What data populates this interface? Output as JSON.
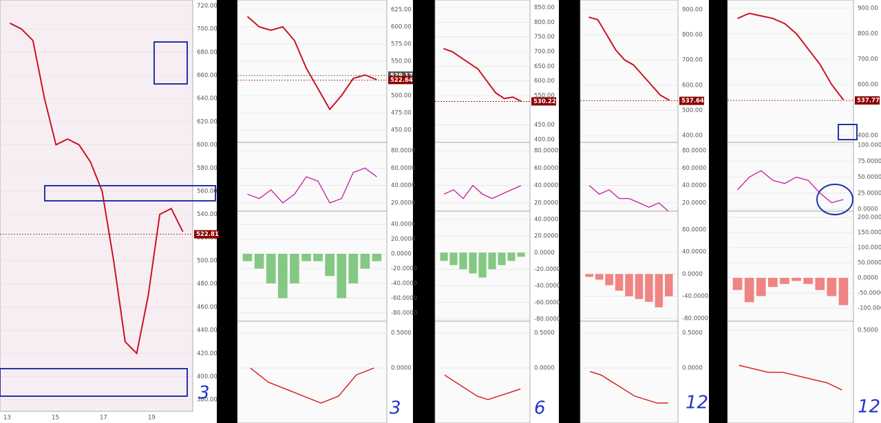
{
  "columns": [
    {
      "annotation": "3",
      "x_labels": [
        "13",
        "15",
        "17",
        "19"
      ],
      "price_tags": [
        {
          "value": 522.81,
          "color": "#8b0000"
        }
      ],
      "panels": [
        {
          "type": "price",
          "ylim": [
            370,
            725
          ],
          "color": "#cc1122",
          "yticks": [
            {
              "value": 720,
              "label": "720.00"
            },
            {
              "value": 700,
              "label": "700.00"
            },
            {
              "value": 680,
              "label": "680.00"
            },
            {
              "value": 660,
              "label": "660.00"
            },
            {
              "value": 640,
              "label": "640.00"
            },
            {
              "value": 620,
              "label": "620.00"
            },
            {
              "value": 600,
              "label": "600.00"
            },
            {
              "value": 580,
              "label": "580.00"
            },
            {
              "value": 560,
              "label": "560.00"
            },
            {
              "value": 540,
              "label": "540.00"
            },
            {
              "value": 520,
              "label": "520.00"
            },
            {
              "value": 500,
              "label": "500.00"
            },
            {
              "value": 480,
              "label": "480.00"
            },
            {
              "value": 460,
              "label": "460.00"
            },
            {
              "value": 440,
              "label": "440.00"
            },
            {
              "value": 420,
              "label": "420.00"
            },
            {
              "value": 400,
              "label": "400.00"
            },
            {
              "value": 380,
              "label": "380.00"
            }
          ],
          "values": [
            705,
            700,
            690,
            640,
            600,
            605,
            600,
            585,
            560,
            500,
            430,
            420,
            470,
            540,
            545,
            525
          ]
        }
      ]
    },
    {
      "annotation": "3",
      "price_tags": [
        {
          "value": 529.17,
          "color": "#555555"
        },
        {
          "value": 522.64,
          "color": "#8b0000"
        }
      ],
      "panels": [
        {
          "type": "price",
          "ylim": [
            432,
            639
          ],
          "color": "#cc1122",
          "yticks": [
            {
              "value": 625,
              "label": "625.00"
            },
            {
              "value": 600,
              "label": "600.00"
            },
            {
              "value": 575,
              "label": "575.00"
            },
            {
              "value": 550,
              "label": "550.00"
            },
            {
              "value": 500,
              "label": "500.00"
            },
            {
              "value": 475,
              "label": "475.00"
            },
            {
              "value": 450,
              "label": "450.00"
            }
          ],
          "values": [
            615,
            600,
            595,
            600,
            580,
            540,
            510,
            480,
            500,
            525,
            530,
            523
          ]
        },
        {
          "type": "line",
          "ylim": [
            10.5,
            89.5
          ],
          "color": "#cc33aa",
          "yticks": [
            {
              "value": 80,
              "label": "80.0000"
            },
            {
              "value": 60,
              "label": "60.0000"
            },
            {
              "value": 40,
              "label": "40.0000"
            },
            {
              "value": 20,
              "label": "20.0000"
            }
          ],
          "values": [
            30,
            25,
            35,
            20,
            30,
            50,
            45,
            20,
            25,
            55,
            60,
            50
          ]
        },
        {
          "type": "histogram",
          "ylim": [
            -91.2,
            57.7
          ],
          "color": "#66bb66",
          "yticks": [
            {
              "value": 40,
              "label": "40.0000"
            },
            {
              "value": 20,
              "label": "20.0000"
            },
            {
              "value": 0,
              "label": "0.0000"
            },
            {
              "value": -20,
              "label": "-20.0000"
            },
            {
              "value": -40,
              "label": "-40.0000"
            },
            {
              "value": -60,
              "label": "-60.0000"
            },
            {
              "value": -80,
              "label": "-80.0000"
            }
          ],
          "values": [
            -10,
            -20,
            -40,
            -60,
            -40,
            -10,
            -10,
            -30,
            -60,
            -40,
            -20,
            -10
          ]
        },
        {
          "type": "line",
          "ylim": [
            -0.784,
            0.667
          ],
          "color": "#dd2222",
          "yticks": [
            {
              "value": 0.5,
              "label": "0.5000"
            },
            {
              "value": 0,
              "label": "0.0000"
            }
          ],
          "values": [
            0,
            -0.2,
            -0.3,
            -0.4,
            -0.5,
            -0.4,
            -0.1,
            0
          ]
        }
      ]
    },
    {
      "annotation": "6",
      "price_tags": [
        {
          "value": 530.22,
          "color": "#8b0000"
        }
      ],
      "panels": [
        {
          "type": "price",
          "ylim": [
            390.6,
            875.8
          ],
          "color": "#cc1122",
          "yticks": [
            {
              "value": 850,
              "label": "850.00"
            },
            {
              "value": 800,
              "label": "800.00"
            },
            {
              "value": 750,
              "label": "750.00"
            },
            {
              "value": 700,
              "label": "700.00"
            },
            {
              "value": 650,
              "label": "650.00"
            },
            {
              "value": 600,
              "label": "600.00"
            },
            {
              "value": 550,
              "label": "550.00"
            },
            {
              "value": 450,
              "label": "450.00"
            },
            {
              "value": 400,
              "label": "400.00"
            }
          ],
          "values": [
            710,
            700,
            680,
            660,
            640,
            600,
            560,
            540,
            545,
            530
          ]
        },
        {
          "type": "line",
          "ylim": [
            10.5,
            89.5
          ],
          "color": "#cc33aa",
          "yticks": [
            {
              "value": 80,
              "label": "80.0000"
            },
            {
              "value": 60,
              "label": "60.0000"
            },
            {
              "value": 40,
              "label": "40.0000"
            },
            {
              "value": 20,
              "label": "20.0000"
            }
          ],
          "values": [
            30,
            35,
            25,
            40,
            30,
            25,
            30,
            35,
            40
          ]
        },
        {
          "type": "histogram",
          "ylim": [
            -82.5,
            49.9
          ],
          "color": "#66bb66",
          "yticks": [
            {
              "value": 40,
              "label": "40.0000"
            },
            {
              "value": 20,
              "label": "20.0000"
            },
            {
              "value": 0,
              "label": "0.0000"
            },
            {
              "value": -20,
              "label": "-20.0000"
            },
            {
              "value": -40,
              "label": "-40.0000"
            },
            {
              "value": -60,
              "label": "-60.0000"
            },
            {
              "value": -80,
              "label": "-80.0000"
            }
          ],
          "values": [
            -10,
            -15,
            -20,
            -25,
            -30,
            -20,
            -15,
            -10,
            -5
          ]
        },
        {
          "type": "line",
          "ylim": [
            -0.784,
            0.667
          ],
          "color": "#dd2222",
          "yticks": [
            {
              "value": 0.5,
              "label": "0.5000"
            },
            {
              "value": 0,
              "label": "0.0000"
            }
          ],
          "values": [
            -0.1,
            -0.2,
            -0.3,
            -0.4,
            -0.45,
            -0.4,
            -0.35,
            -0.3
          ]
        }
      ]
    },
    {
      "annotation": "12",
      "price_tags": [
        {
          "value": 537.64,
          "color": "#8b0000"
        }
      ],
      "panels": [
        {
          "type": "price",
          "ylim": [
            372.7,
            938
          ],
          "color": "#cc1122",
          "yticks": [
            {
              "value": 900,
              "label": "900.00"
            },
            {
              "value": 800,
              "label": "800.00"
            },
            {
              "value": 700,
              "label": "700.00"
            },
            {
              "value": 600,
              "label": "600.00"
            },
            {
              "value": 500,
              "label": "500.00"
            },
            {
              "value": 400,
              "label": "400.00"
            }
          ],
          "values": [
            870,
            860,
            800,
            740,
            700,
            680,
            640,
            600,
            560,
            540
          ]
        },
        {
          "type": "line",
          "ylim": [
            10.5,
            89.5
          ],
          "color": "#cc33aa",
          "yticks": [
            {
              "value": 80,
              "label": "80.0000"
            },
            {
              "value": 60,
              "label": "60.0000"
            },
            {
              "value": 40,
              "label": "40.0000"
            },
            {
              "value": 20,
              "label": "20.0000"
            }
          ],
          "values": [
            40,
            30,
            35,
            25,
            25,
            20,
            15,
            20,
            10
          ]
        },
        {
          "type": "histogram",
          "ylim": [
            -85,
            113.5
          ],
          "color": "#ee6666",
          "yticks": [
            {
              "value": 80,
              "label": "80.0000"
            },
            {
              "value": 40,
              "label": "40.0000"
            },
            {
              "value": 0,
              "label": "0.0000"
            },
            {
              "value": -40,
              "label": "-40.0000"
            },
            {
              "value": -80,
              "label": "-80.0000"
            }
          ],
          "values": [
            -5,
            -10,
            -20,
            -30,
            -40,
            -45,
            -50,
            -60,
            -40
          ]
        },
        {
          "type": "line",
          "ylim": [
            -0.784,
            0.667
          ],
          "color": "#dd2222",
          "yticks": [
            {
              "value": 0.5,
              "label": "0.5000"
            },
            {
              "value": 0,
              "label": "0.0000"
            }
          ],
          "values": [
            -0.05,
            -0.1,
            -0.2,
            -0.3,
            -0.4,
            -0.45,
            -0.5,
            -0.5
          ]
        }
      ]
    },
    {
      "annotation": "12",
      "price_tags": [
        {
          "value": 537.77,
          "color": "#8b0000"
        }
      ],
      "panels": [
        {
          "type": "price",
          "ylim": [
            373,
            932.4
          ],
          "color": "#cc1122",
          "yticks": [
            {
              "value": 900,
              "label": "900.00"
            },
            {
              "value": 800,
              "label": "800.00"
            },
            {
              "value": 700,
              "label": "700.00"
            },
            {
              "value": 600,
              "label": "600.00"
            },
            {
              "value": 400,
              "label": "400.00"
            }
          ],
          "values": [
            860,
            880,
            870,
            860,
            840,
            800,
            740,
            680,
            600,
            540
          ]
        },
        {
          "type": "line",
          "ylim": [
            -3.2,
            104.3
          ],
          "color": "#cc33aa",
          "yticks": [
            {
              "value": 100,
              "label": "100.0000"
            },
            {
              "value": 75,
              "label": "75.0000"
            },
            {
              "value": 50,
              "label": "50.0000"
            },
            {
              "value": 25,
              "label": "25.0000"
            },
            {
              "value": 0,
              "label": "0.0000"
            }
          ],
          "values": [
            30,
            50,
            60,
            45,
            40,
            50,
            45,
            25,
            10,
            15
          ]
        },
        {
          "type": "histogram",
          "ylim": [
            -143,
            220.5
          ],
          "color": "#ee6666",
          "yticks": [
            {
              "value": 200,
              "label": "200.0000"
            },
            {
              "value": 150,
              "label": "150.0000"
            },
            {
              "value": 100,
              "label": "100.0000"
            },
            {
              "value": 50,
              "label": "50.0000"
            },
            {
              "value": 0,
              "label": "0.0000"
            },
            {
              "value": -50,
              "label": "-50.0000"
            },
            {
              "value": -100,
              "label": "-100.0000"
            }
          ],
          "values": [
            -40,
            -80,
            -60,
            -30,
            -20,
            -10,
            -20,
            -40,
            -60,
            -90
          ]
        },
        {
          "type": "line",
          "ylim": [
            -0.82,
            0.627
          ],
          "color": "#dd2222",
          "yticks": [
            {
              "value": 0.5,
              "label": "0.5000"
            }
          ],
          "values": [
            0,
            -0.05,
            -0.1,
            -0.1,
            -0.15,
            -0.2,
            -0.25,
            -0.35
          ]
        }
      ]
    }
  ]
}
